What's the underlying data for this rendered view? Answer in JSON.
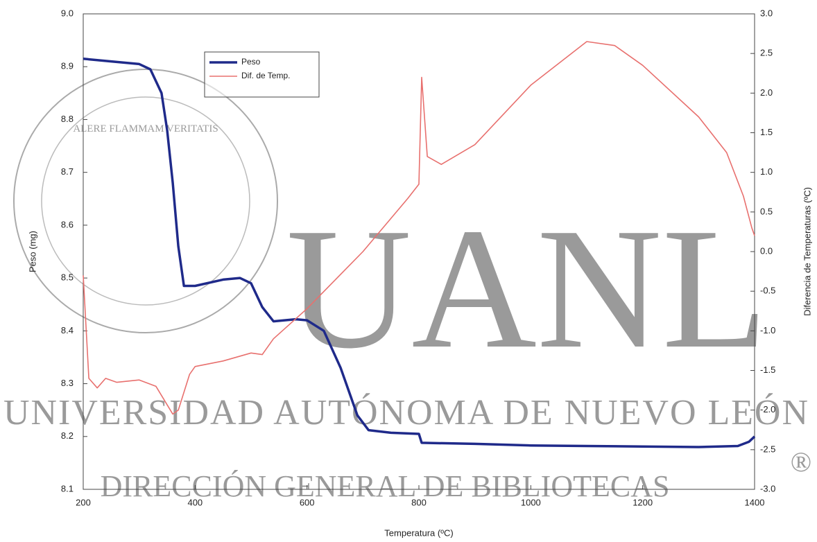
{
  "chart_data": {
    "type": "line",
    "x_label": "Temperatura (ºC)",
    "y_label": "Peso (mg)",
    "y2_label": "Diferencia de Temperaturas (ºC)",
    "xlim": [
      200,
      1400
    ],
    "xticks": [
      200,
      400,
      600,
      800,
      1000,
      1200,
      1400
    ],
    "ylim": [
      8.1,
      9.0
    ],
    "yticks": [
      8.1,
      8.2,
      8.3,
      8.4,
      8.5,
      8.6,
      8.7,
      8.8,
      8.9,
      {
        "value": 9,
        "label": "9.0"
      }
    ],
    "y2lim": [
      -3.0,
      3.0
    ],
    "y2ticks": [
      {
        "value": -3,
        "label": "-3.0"
      },
      -2.5,
      {
        "value": -2,
        "label": "-2.0"
      },
      -1.5,
      {
        "value": -1,
        "label": "-1.0"
      },
      -0.5,
      {
        "value": 0,
        "label": "0.0"
      },
      0.5,
      {
        "value": 1,
        "label": "1.0"
      },
      1.5,
      {
        "value": 2,
        "label": "2.0"
      },
      2.5,
      {
        "value": 3,
        "label": "3.0"
      }
    ],
    "legend": "upper-left",
    "series": [
      {
        "name": "Peso",
        "color": "#1f2a8a",
        "axis": "y",
        "x": [
          200,
          250,
          300,
          320,
          340,
          350,
          360,
          370,
          380,
          400,
          450,
          480,
          500,
          520,
          540,
          580,
          600,
          630,
          660,
          690,
          710,
          750,
          800,
          805,
          900,
          1000,
          1100,
          1200,
          1300,
          1370,
          1390,
          1400
        ],
        "values": [
          8.915,
          8.91,
          8.905,
          8.895,
          8.85,
          8.78,
          8.68,
          8.56,
          8.485,
          8.485,
          8.497,
          8.5,
          8.49,
          8.445,
          8.418,
          8.422,
          8.42,
          8.4,
          8.33,
          8.24,
          8.212,
          8.207,
          8.205,
          8.188,
          8.186,
          8.183,
          8.182,
          8.181,
          8.18,
          8.182,
          8.19,
          8.2
        ]
      },
      {
        "name": "Dif. de Temp.",
        "color": "#e8706e",
        "axis": "y2",
        "x": [
          200,
          210,
          225,
          240,
          260,
          300,
          330,
          360,
          370,
          390,
          400,
          450,
          500,
          520,
          540,
          600,
          700,
          780,
          800,
          805,
          815,
          840,
          900,
          1000,
          1100,
          1150,
          1200,
          1300,
          1350,
          1380,
          1395,
          1400
        ],
        "values": [
          -0.3,
          -1.6,
          -1.72,
          -1.6,
          -1.65,
          -1.62,
          -1.7,
          -2.05,
          -2.0,
          -1.55,
          -1.45,
          -1.38,
          -1.28,
          -1.3,
          -1.1,
          -0.72,
          0.0,
          0.67,
          0.85,
          2.2,
          1.2,
          1.1,
          1.35,
          2.1,
          2.65,
          2.6,
          2.35,
          1.7,
          1.25,
          0.7,
          0.3,
          0.2
        ]
      }
    ]
  },
  "watermark": {
    "logo": "UANL",
    "university": "UNIVERSIDAD AUTÓNOMA DE NUEVO LEÓN",
    "library": "DIRECCIÓN GENERAL DE BIBLIOTECAS",
    "mark": "®",
    "motto": "ALERE FLAMMAM VERITATIS"
  }
}
